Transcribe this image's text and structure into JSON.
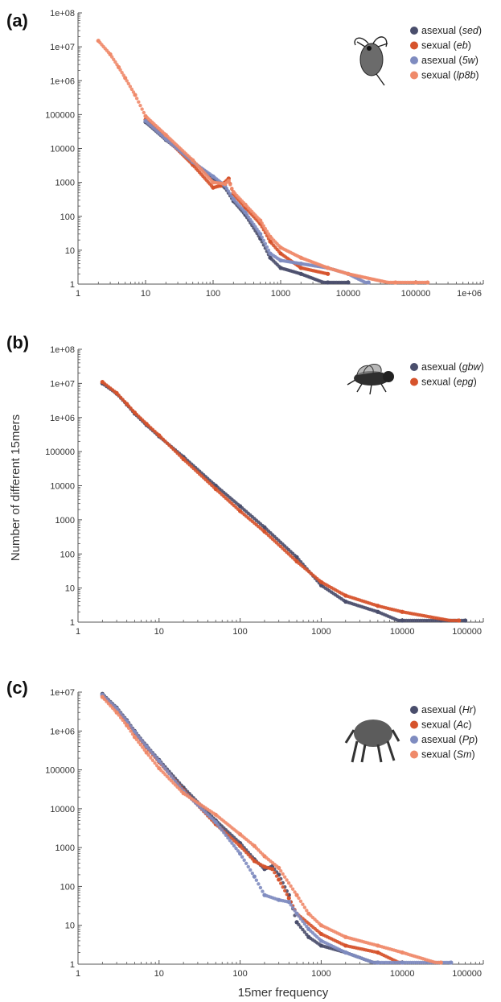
{
  "colors": {
    "dark_blue": "#4a4e6c",
    "red_orange": "#d6532c",
    "light_blue": "#7f8cc0",
    "salmon": "#ef8a6a",
    "axis": "#555555"
  },
  "axes": {
    "ylabel": "Number of different 15mers",
    "xlabel": "15mer frequency"
  },
  "chart_data": [
    {
      "type": "scatter",
      "panel_label": "(a)",
      "x_scale": "log",
      "y_scale": "log",
      "xlim": [
        1,
        1000000
      ],
      "ylim": [
        1,
        100000000
      ],
      "x_ticks": [
        "1",
        "10",
        "100",
        "1000",
        "10000",
        "100000",
        "1e+06"
      ],
      "y_ticks": [
        "1",
        "10",
        "100",
        "1000",
        "10000",
        "100000",
        "1e+06",
        "1e+07",
        "1e+08"
      ],
      "legend_position": "top-right",
      "icon": "water-flea-icon",
      "series": [
        {
          "prefix": "asexual (",
          "strain": "sed",
          "suffix": ")",
          "color": "#4a4e6c",
          "x": [
            10,
            20,
            50,
            100,
            150,
            200,
            300,
            500,
            700,
            1000,
            2000,
            5000,
            10000
          ],
          "y": [
            60000,
            18000,
            4200,
            1300,
            700,
            280,
            110,
            22,
            6,
            3,
            2,
            1,
            1
          ]
        },
        {
          "prefix": "sexual (",
          "strain": "eb",
          "suffix": ")",
          "color": "#d6532c",
          "x": [
            10,
            20,
            50,
            100,
            130,
            170,
            200,
            300,
            500,
            700,
            1000,
            2000,
            5000
          ],
          "y": [
            70000,
            20000,
            3300,
            700,
            800,
            1300,
            450,
            180,
            60,
            18,
            8,
            3,
            2
          ]
        },
        {
          "prefix": "asexual (",
          "strain": "5w",
          "suffix": ")",
          "color": "#7f8cc0",
          "x": [
            10,
            20,
            50,
            100,
            150,
            200,
            300,
            500,
            700,
            1000,
            2000,
            5000,
            10000,
            20000
          ],
          "y": [
            65000,
            19000,
            4000,
            1500,
            800,
            320,
            130,
            30,
            8,
            5,
            4,
            3,
            2,
            1
          ]
        },
        {
          "prefix": "sexual (",
          "strain": "lp8b",
          "suffix": ")",
          "color": "#ef8a6a",
          "x": [
            2,
            3,
            4,
            5,
            7,
            10,
            20,
            50,
            100,
            150,
            170,
            200,
            300,
            500,
            700,
            1000,
            2000,
            5000,
            10000,
            50000,
            100000,
            150000
          ],
          "y": [
            15000000,
            6000000,
            2500000,
            1200000,
            380000,
            90000,
            25000,
            4500,
            1000,
            900,
            1100,
            520,
            220,
            75,
            25,
            12,
            6,
            3,
            2,
            1,
            1,
            1
          ]
        }
      ]
    },
    {
      "type": "scatter",
      "panel_label": "(b)",
      "x_scale": "log",
      "y_scale": "log",
      "xlim": [
        1,
        100000
      ],
      "ylim": [
        1,
        100000000
      ],
      "x_ticks": [
        "1",
        "10",
        "100",
        "1000",
        "10000",
        "100000"
      ],
      "y_ticks": [
        "1",
        "10",
        "100",
        "1000",
        "10000",
        "100000",
        "1e+06",
        "1e+07",
        "1e+08"
      ],
      "legend_position": "top-right",
      "icon": "fly-icon",
      "series": [
        {
          "prefix": "asexual (",
          "strain": "gbw",
          "suffix": ")",
          "color": "#4a4e6c",
          "x": [
            2,
            3,
            4,
            5,
            7,
            10,
            20,
            50,
            100,
            200,
            500,
            1000,
            2000,
            5000,
            10000,
            30000,
            60000
          ],
          "y": [
            10000000,
            5000000,
            2400000,
            1300000,
            600000,
            280000,
            70000,
            10000,
            2500,
            600,
            80,
            12,
            4,
            2,
            1,
            1,
            1
          ]
        },
        {
          "prefix": "sexual (",
          "strain": "epg",
          "suffix": ")",
          "color": "#d6532c",
          "x": [
            2,
            3,
            4,
            5,
            7,
            10,
            20,
            50,
            100,
            200,
            500,
            1000,
            2000,
            5000,
            10000,
            50000
          ],
          "y": [
            11000000,
            5200000,
            2500000,
            1400000,
            650000,
            300000,
            60000,
            8000,
            1800,
            450,
            60,
            15,
            6,
            3,
            2,
            1
          ]
        }
      ]
    },
    {
      "type": "scatter",
      "panel_label": "(c)",
      "x_scale": "log",
      "y_scale": "log",
      "xlim": [
        1,
        100000
      ],
      "ylim": [
        1,
        10000000
      ],
      "x_ticks": [
        "1",
        "10",
        "100",
        "1000",
        "10000",
        "100000"
      ],
      "y_ticks": [
        "1",
        "10",
        "100",
        "1000",
        "10000",
        "100000",
        "1e+06",
        "1e+07"
      ],
      "legend_position": "top-right",
      "icon": "mite-icon",
      "series": [
        {
          "prefix": "asexual (",
          "strain": "Hr",
          "suffix": ")",
          "color": "#4a4e6c",
          "x": [
            2,
            3,
            4,
            5,
            7,
            10,
            20,
            50,
            100,
            150,
            200,
            250,
            300,
            400,
            500,
            700,
            1000,
            2000,
            5000
          ],
          "y": [
            9000000,
            4000000,
            1900000,
            1000000,
            420000,
            180000,
            35000,
            5000,
            1300,
            500,
            280,
            330,
            200,
            60,
            12,
            5,
            3,
            2,
            1
          ]
        },
        {
          "prefix": "sexual (",
          "strain": "Ac",
          "suffix": ")",
          "color": "#d6532c",
          "x": [
            2,
            3,
            4,
            5,
            7,
            10,
            20,
            50,
            100,
            150,
            200,
            250,
            300,
            400,
            500,
            1000,
            2000,
            5000,
            10000
          ],
          "y": [
            8000000,
            3600000,
            1700000,
            900000,
            380000,
            160000,
            30000,
            4000,
            1100,
            450,
            320,
            280,
            150,
            50,
            20,
            6,
            3,
            2,
            1
          ]
        },
        {
          "prefix": "asexual (",
          "strain": "Pp",
          "suffix": ")",
          "color": "#7f8cc0",
          "x": [
            2,
            3,
            4,
            5,
            7,
            10,
            20,
            50,
            100,
            150,
            200,
            300,
            400,
            500,
            700,
            1000,
            2000,
            5000,
            10000,
            40000
          ],
          "y": [
            8500000,
            3800000,
            1800000,
            950000,
            400000,
            170000,
            28000,
            4500,
            700,
            180,
            60,
            45,
            40,
            20,
            8,
            4,
            2,
            1,
            1,
            1
          ]
        },
        {
          "prefix": "sexual (",
          "strain": "Sm",
          "suffix": ")",
          "color": "#ef8a6a",
          "x": [
            2,
            3,
            4,
            5,
            7,
            10,
            20,
            50,
            100,
            150,
            200,
            300,
            500,
            700,
            1000,
            2000,
            5000,
            10000,
            30000
          ],
          "y": [
            7500000,
            3000000,
            1400000,
            700000,
            280000,
            110000,
            25000,
            7000,
            2200,
            1100,
            600,
            300,
            60,
            20,
            10,
            5,
            3,
            2,
            1
          ]
        }
      ]
    }
  ]
}
